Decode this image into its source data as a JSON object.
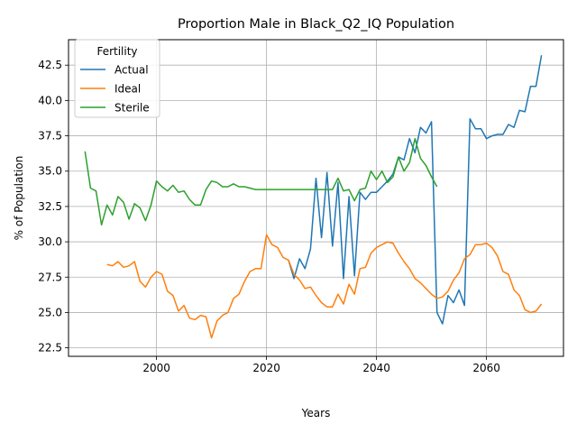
{
  "chart_data": {
    "type": "line",
    "title": "Proportion Male in Black_Q2_IQ Population",
    "xlabel": "Years",
    "ylabel": "% of Population",
    "xlim": [
      1984,
      2074
    ],
    "ylim": [
      21.9,
      44.3
    ],
    "xticks": [
      2000,
      2020,
      2040,
      2060
    ],
    "yticks": [
      22.5,
      25.0,
      27.5,
      30.0,
      32.5,
      35.0,
      37.5,
      40.0,
      42.5
    ],
    "xtick_labels": [
      "2000",
      "2020",
      "2040",
      "2060"
    ],
    "ytick_labels": [
      "22.5",
      "25.0",
      "27.5",
      "30.0",
      "32.5",
      "35.0",
      "37.5",
      "40.0",
      "42.5"
    ],
    "grid": true,
    "legend": {
      "title": "Fertility",
      "position": "upper-left"
    },
    "series": [
      {
        "name": "Actual",
        "color": "#1f77b4",
        "points": [
          [
            2024,
            28.7
          ],
          [
            2025,
            27.4
          ],
          [
            2026,
            28.8
          ],
          [
            2027,
            28.1
          ],
          [
            2028,
            29.5
          ],
          [
            2029,
            34.5
          ],
          [
            2030,
            30.3
          ],
          [
            2031,
            34.9
          ],
          [
            2032,
            29.7
          ],
          [
            2033,
            34.2
          ],
          [
            2034,
            27.4
          ],
          [
            2035,
            33.2
          ],
          [
            2036,
            27.6
          ],
          [
            2037,
            33.5
          ],
          [
            2038,
            33.0
          ],
          [
            2039,
            33.5
          ],
          [
            2040,
            33.5
          ],
          [
            2041,
            33.9
          ],
          [
            2042,
            34.3
          ],
          [
            2043,
            34.8
          ],
          [
            2044,
            36.0
          ],
          [
            2045,
            35.8
          ],
          [
            2046,
            37.3
          ],
          [
            2047,
            36.3
          ],
          [
            2048,
            38.1
          ],
          [
            2049,
            37.7
          ],
          [
            2050,
            38.5
          ],
          [
            2051,
            25.0
          ],
          [
            2052,
            24.2
          ],
          [
            2053,
            26.2
          ],
          [
            2054,
            25.7
          ],
          [
            2055,
            26.6
          ],
          [
            2056,
            25.5
          ],
          [
            2057,
            38.7
          ],
          [
            2058,
            38.0
          ],
          [
            2059,
            38.0
          ],
          [
            2060,
            37.3
          ],
          [
            2061,
            37.5
          ],
          [
            2062,
            37.6
          ],
          [
            2063,
            37.6
          ],
          [
            2064,
            38.3
          ],
          [
            2065,
            38.1
          ],
          [
            2066,
            39.3
          ],
          [
            2067,
            39.2
          ],
          [
            2068,
            41.0
          ],
          [
            2069,
            41.0
          ],
          [
            2070,
            43.2
          ]
        ]
      },
      {
        "name": "Ideal",
        "color": "#ff7f0e",
        "points": [
          [
            1991,
            28.4
          ],
          [
            1992,
            28.3
          ],
          [
            1993,
            28.6
          ],
          [
            1994,
            28.2
          ],
          [
            1995,
            28.3
          ],
          [
            1996,
            28.6
          ],
          [
            1997,
            27.2
          ],
          [
            1998,
            26.8
          ],
          [
            1999,
            27.5
          ],
          [
            2000,
            27.9
          ],
          [
            2001,
            27.7
          ],
          [
            2002,
            26.5
          ],
          [
            2003,
            26.2
          ],
          [
            2004,
            25.1
          ],
          [
            2005,
            25.5
          ],
          [
            2006,
            24.6
          ],
          [
            2007,
            24.5
          ],
          [
            2008,
            24.8
          ],
          [
            2009,
            24.7
          ],
          [
            2010,
            23.2
          ],
          [
            2011,
            24.4
          ],
          [
            2012,
            24.8
          ],
          [
            2013,
            25.0
          ],
          [
            2014,
            26.0
          ],
          [
            2015,
            26.3
          ],
          [
            2016,
            27.2
          ],
          [
            2017,
            27.9
          ],
          [
            2018,
            28.1
          ],
          [
            2019,
            28.1
          ],
          [
            2020,
            30.5
          ],
          [
            2021,
            29.8
          ],
          [
            2022,
            29.6
          ],
          [
            2023,
            28.9
          ],
          [
            2024,
            28.7
          ],
          [
            2025,
            27.7
          ],
          [
            2026,
            27.3
          ],
          [
            2027,
            26.7
          ],
          [
            2028,
            26.8
          ],
          [
            2029,
            26.2
          ],
          [
            2030,
            25.7
          ],
          [
            2031,
            25.4
          ],
          [
            2032,
            25.4
          ],
          [
            2033,
            26.3
          ],
          [
            2034,
            25.6
          ],
          [
            2035,
            27.0
          ],
          [
            2036,
            26.3
          ],
          [
            2037,
            28.1
          ],
          [
            2038,
            28.2
          ],
          [
            2039,
            29.2
          ],
          [
            2040,
            29.6
          ],
          [
            2041,
            29.8
          ],
          [
            2042,
            30.0
          ],
          [
            2043,
            29.9
          ],
          [
            2044,
            29.2
          ],
          [
            2045,
            28.6
          ],
          [
            2046,
            28.1
          ],
          [
            2047,
            27.4
          ],
          [
            2048,
            27.1
          ],
          [
            2049,
            26.7
          ],
          [
            2050,
            26.3
          ],
          [
            2051,
            26.0
          ],
          [
            2052,
            26.1
          ],
          [
            2053,
            26.5
          ],
          [
            2054,
            27.3
          ],
          [
            2055,
            27.8
          ],
          [
            2056,
            28.8
          ],
          [
            2057,
            29.1
          ],
          [
            2058,
            29.8
          ],
          [
            2059,
            29.8
          ],
          [
            2060,
            29.9
          ],
          [
            2061,
            29.6
          ],
          [
            2062,
            29.0
          ],
          [
            2063,
            27.9
          ],
          [
            2064,
            27.7
          ],
          [
            2065,
            26.6
          ],
          [
            2066,
            26.2
          ],
          [
            2067,
            25.2
          ],
          [
            2068,
            25.0
          ],
          [
            2069,
            25.1
          ],
          [
            2070,
            25.6
          ]
        ]
      },
      {
        "name": "Sterile",
        "color": "#2ca02c",
        "points": [
          [
            1987,
            36.4
          ],
          [
            1988,
            33.8
          ],
          [
            1989,
            33.6
          ],
          [
            1990,
            31.2
          ],
          [
            1991,
            32.6
          ],
          [
            1992,
            31.9
          ],
          [
            1993,
            33.2
          ],
          [
            1994,
            32.8
          ],
          [
            1995,
            31.6
          ],
          [
            1996,
            32.7
          ],
          [
            1997,
            32.4
          ],
          [
            1998,
            31.5
          ],
          [
            1999,
            32.6
          ],
          [
            2000,
            34.3
          ],
          [
            2001,
            33.9
          ],
          [
            2002,
            33.6
          ],
          [
            2003,
            34.0
          ],
          [
            2004,
            33.5
          ],
          [
            2005,
            33.6
          ],
          [
            2006,
            33.0
          ],
          [
            2007,
            32.6
          ],
          [
            2008,
            32.6
          ],
          [
            2009,
            33.7
          ],
          [
            2010,
            34.3
          ],
          [
            2011,
            34.2
          ],
          [
            2012,
            33.9
          ],
          [
            2013,
            33.9
          ],
          [
            2014,
            34.1
          ],
          [
            2015,
            33.9
          ],
          [
            2016,
            33.9
          ],
          [
            2017,
            33.8
          ],
          [
            2018,
            33.7
          ],
          [
            2019,
            33.7
          ],
          [
            2020,
            33.7
          ],
          [
            2021,
            33.7
          ],
          [
            2022,
            33.7
          ],
          [
            2023,
            33.7
          ],
          [
            2024,
            33.7
          ],
          [
            2025,
            33.7
          ],
          [
            2026,
            33.7
          ],
          [
            2027,
            33.7
          ],
          [
            2028,
            33.7
          ],
          [
            2029,
            33.7
          ],
          [
            2030,
            33.7
          ],
          [
            2031,
            33.7
          ],
          [
            2032,
            33.7
          ],
          [
            2033,
            34.5
          ],
          [
            2034,
            33.6
          ],
          [
            2035,
            33.7
          ],
          [
            2036,
            32.9
          ],
          [
            2037,
            33.7
          ],
          [
            2038,
            33.8
          ],
          [
            2039,
            35.0
          ],
          [
            2040,
            34.4
          ],
          [
            2041,
            35.0
          ],
          [
            2042,
            34.2
          ],
          [
            2043,
            34.6
          ],
          [
            2044,
            36.0
          ],
          [
            2045,
            35.0
          ],
          [
            2046,
            35.6
          ],
          [
            2047,
            37.3
          ],
          [
            2048,
            35.9
          ],
          [
            2049,
            35.4
          ],
          [
            2050,
            34.6
          ],
          [
            2051,
            33.9
          ]
        ]
      }
    ]
  }
}
